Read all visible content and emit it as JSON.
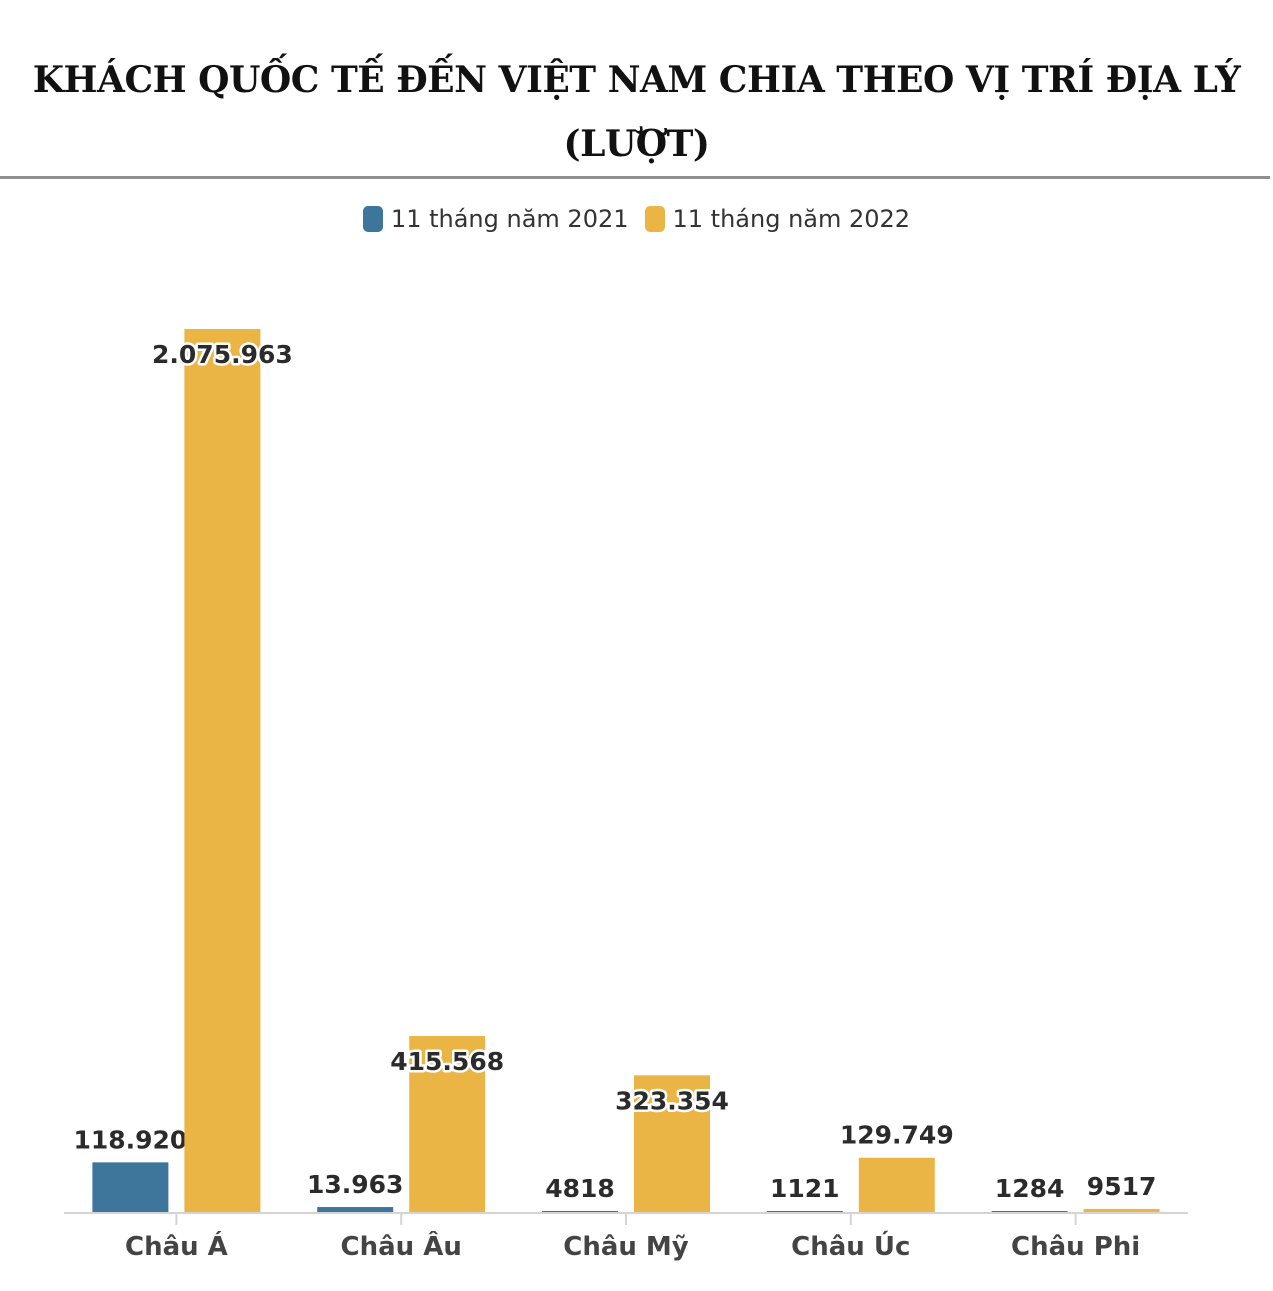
{
  "title": "KHÁCH QUỐC TẾ ĐẾN VIỆT NAM CHIA THEO VỊ TRÍ ĐỊA LÝ",
  "subtitle": "(LƯỢT)",
  "chart_data": {
    "type": "bar",
    "title": "KHÁCH QUỐC TẾ ĐẾN VIỆT NAM CHIA THEO VỊ TRÍ ĐỊA LÝ (LƯỢT)",
    "categories": [
      "Châu Á",
      "Châu Âu",
      "Châu Mỹ",
      "Châu Úc",
      "Châu Phi"
    ],
    "series": [
      {
        "name": "11 tháng năm 2021",
        "color": "#3d759b",
        "values": [
          118920,
          13963,
          4818,
          1121,
          1284
        ],
        "labels": [
          "118.920",
          "13.963",
          "4818",
          "1121",
          "1284"
        ]
      },
      {
        "name": "11 tháng năm 2022",
        "color": "#ebb545",
        "values": [
          2075963,
          415568,
          323354,
          129749,
          9517
        ],
        "labels": [
          "2.075.963",
          "415.568",
          "323.354",
          "129.749",
          "9517"
        ]
      }
    ],
    "ylim": [
      0,
      2075963
    ],
    "grid": false,
    "legend": "top-center",
    "xlabel": "",
    "ylabel": ""
  }
}
